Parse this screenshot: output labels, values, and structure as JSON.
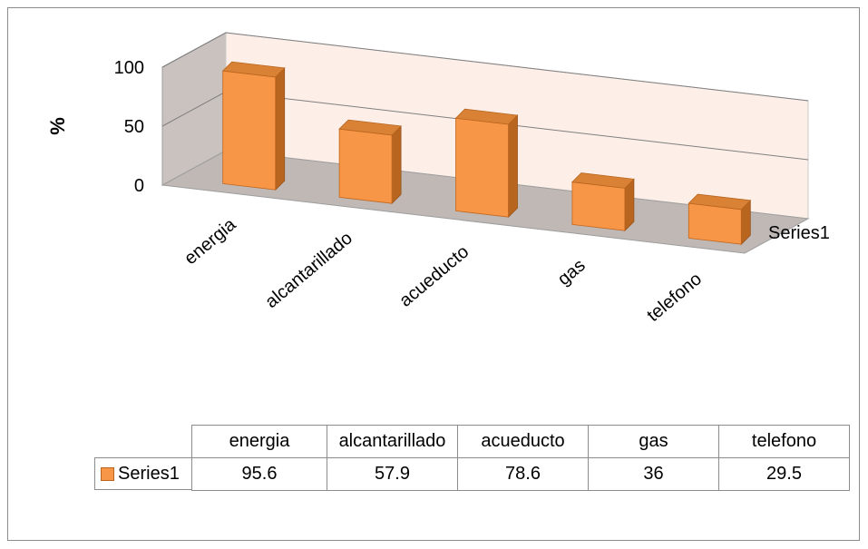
{
  "chart_data": {
    "type": "bar",
    "categories": [
      "energia",
      "alcantarillado",
      "acueducto",
      "gas",
      "telefono"
    ],
    "series": [
      {
        "name": "Series1",
        "values": [
          95.6,
          57.9,
          78.6,
          36,
          29.5
        ]
      }
    ],
    "title": "",
    "xlabel": "",
    "ylabel": "%",
    "ylim": [
      0,
      100
    ],
    "yticks": [
      0,
      50,
      100
    ],
    "depth_axis_label": "Series1",
    "legend": "data-table",
    "grid": true,
    "three_d": true,
    "colors": {
      "bar_front": "#f79646",
      "bar_side": "#b8651f",
      "bar_top": "#d98236",
      "floor": "#bfb8b5",
      "back_wall": "#fdefe8",
      "side_wall": "#c9c2bf"
    }
  },
  "table": {
    "headers": [
      "energia",
      "alcantarillado",
      "acueducto",
      "gas",
      "telefono"
    ],
    "series_label": "Series1",
    "values": [
      "95.6",
      "57.9",
      "78.6",
      "36",
      "29.5"
    ]
  }
}
